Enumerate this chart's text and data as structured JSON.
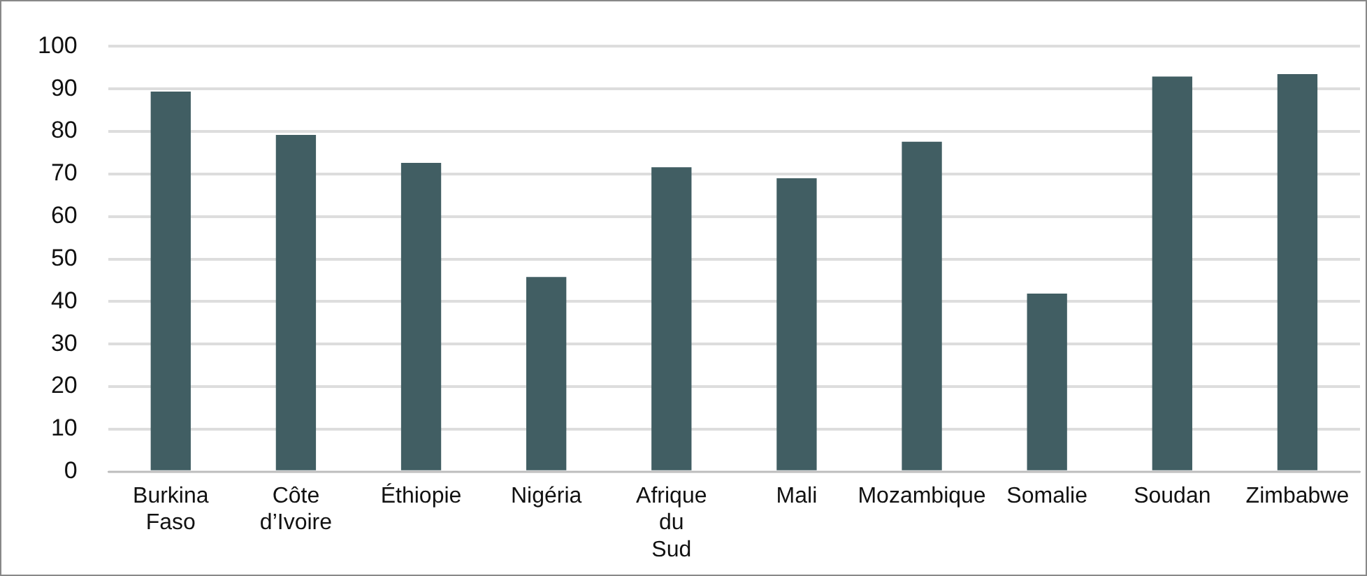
{
  "chart_data": {
    "type": "bar",
    "categories": [
      "Burkina Faso",
      "Côte d’Ivoire",
      "Éthiopie",
      "Nigéria",
      "Afrique du Sud",
      "Mali",
      "Mozambique",
      "Somalie",
      "Soudan",
      "Zimbabwe"
    ],
    "values": [
      89.4,
      79.2,
      72.6,
      45.8,
      71.6,
      69,
      77.6,
      41.9,
      92.9,
      93.5
    ],
    "color": "#415e63",
    "ylim": [
      0,
      100
    ],
    "yticks": [
      0,
      10,
      20,
      30,
      40,
      50,
      60,
      70,
      80,
      90,
      100
    ],
    "grid": "y"
  }
}
